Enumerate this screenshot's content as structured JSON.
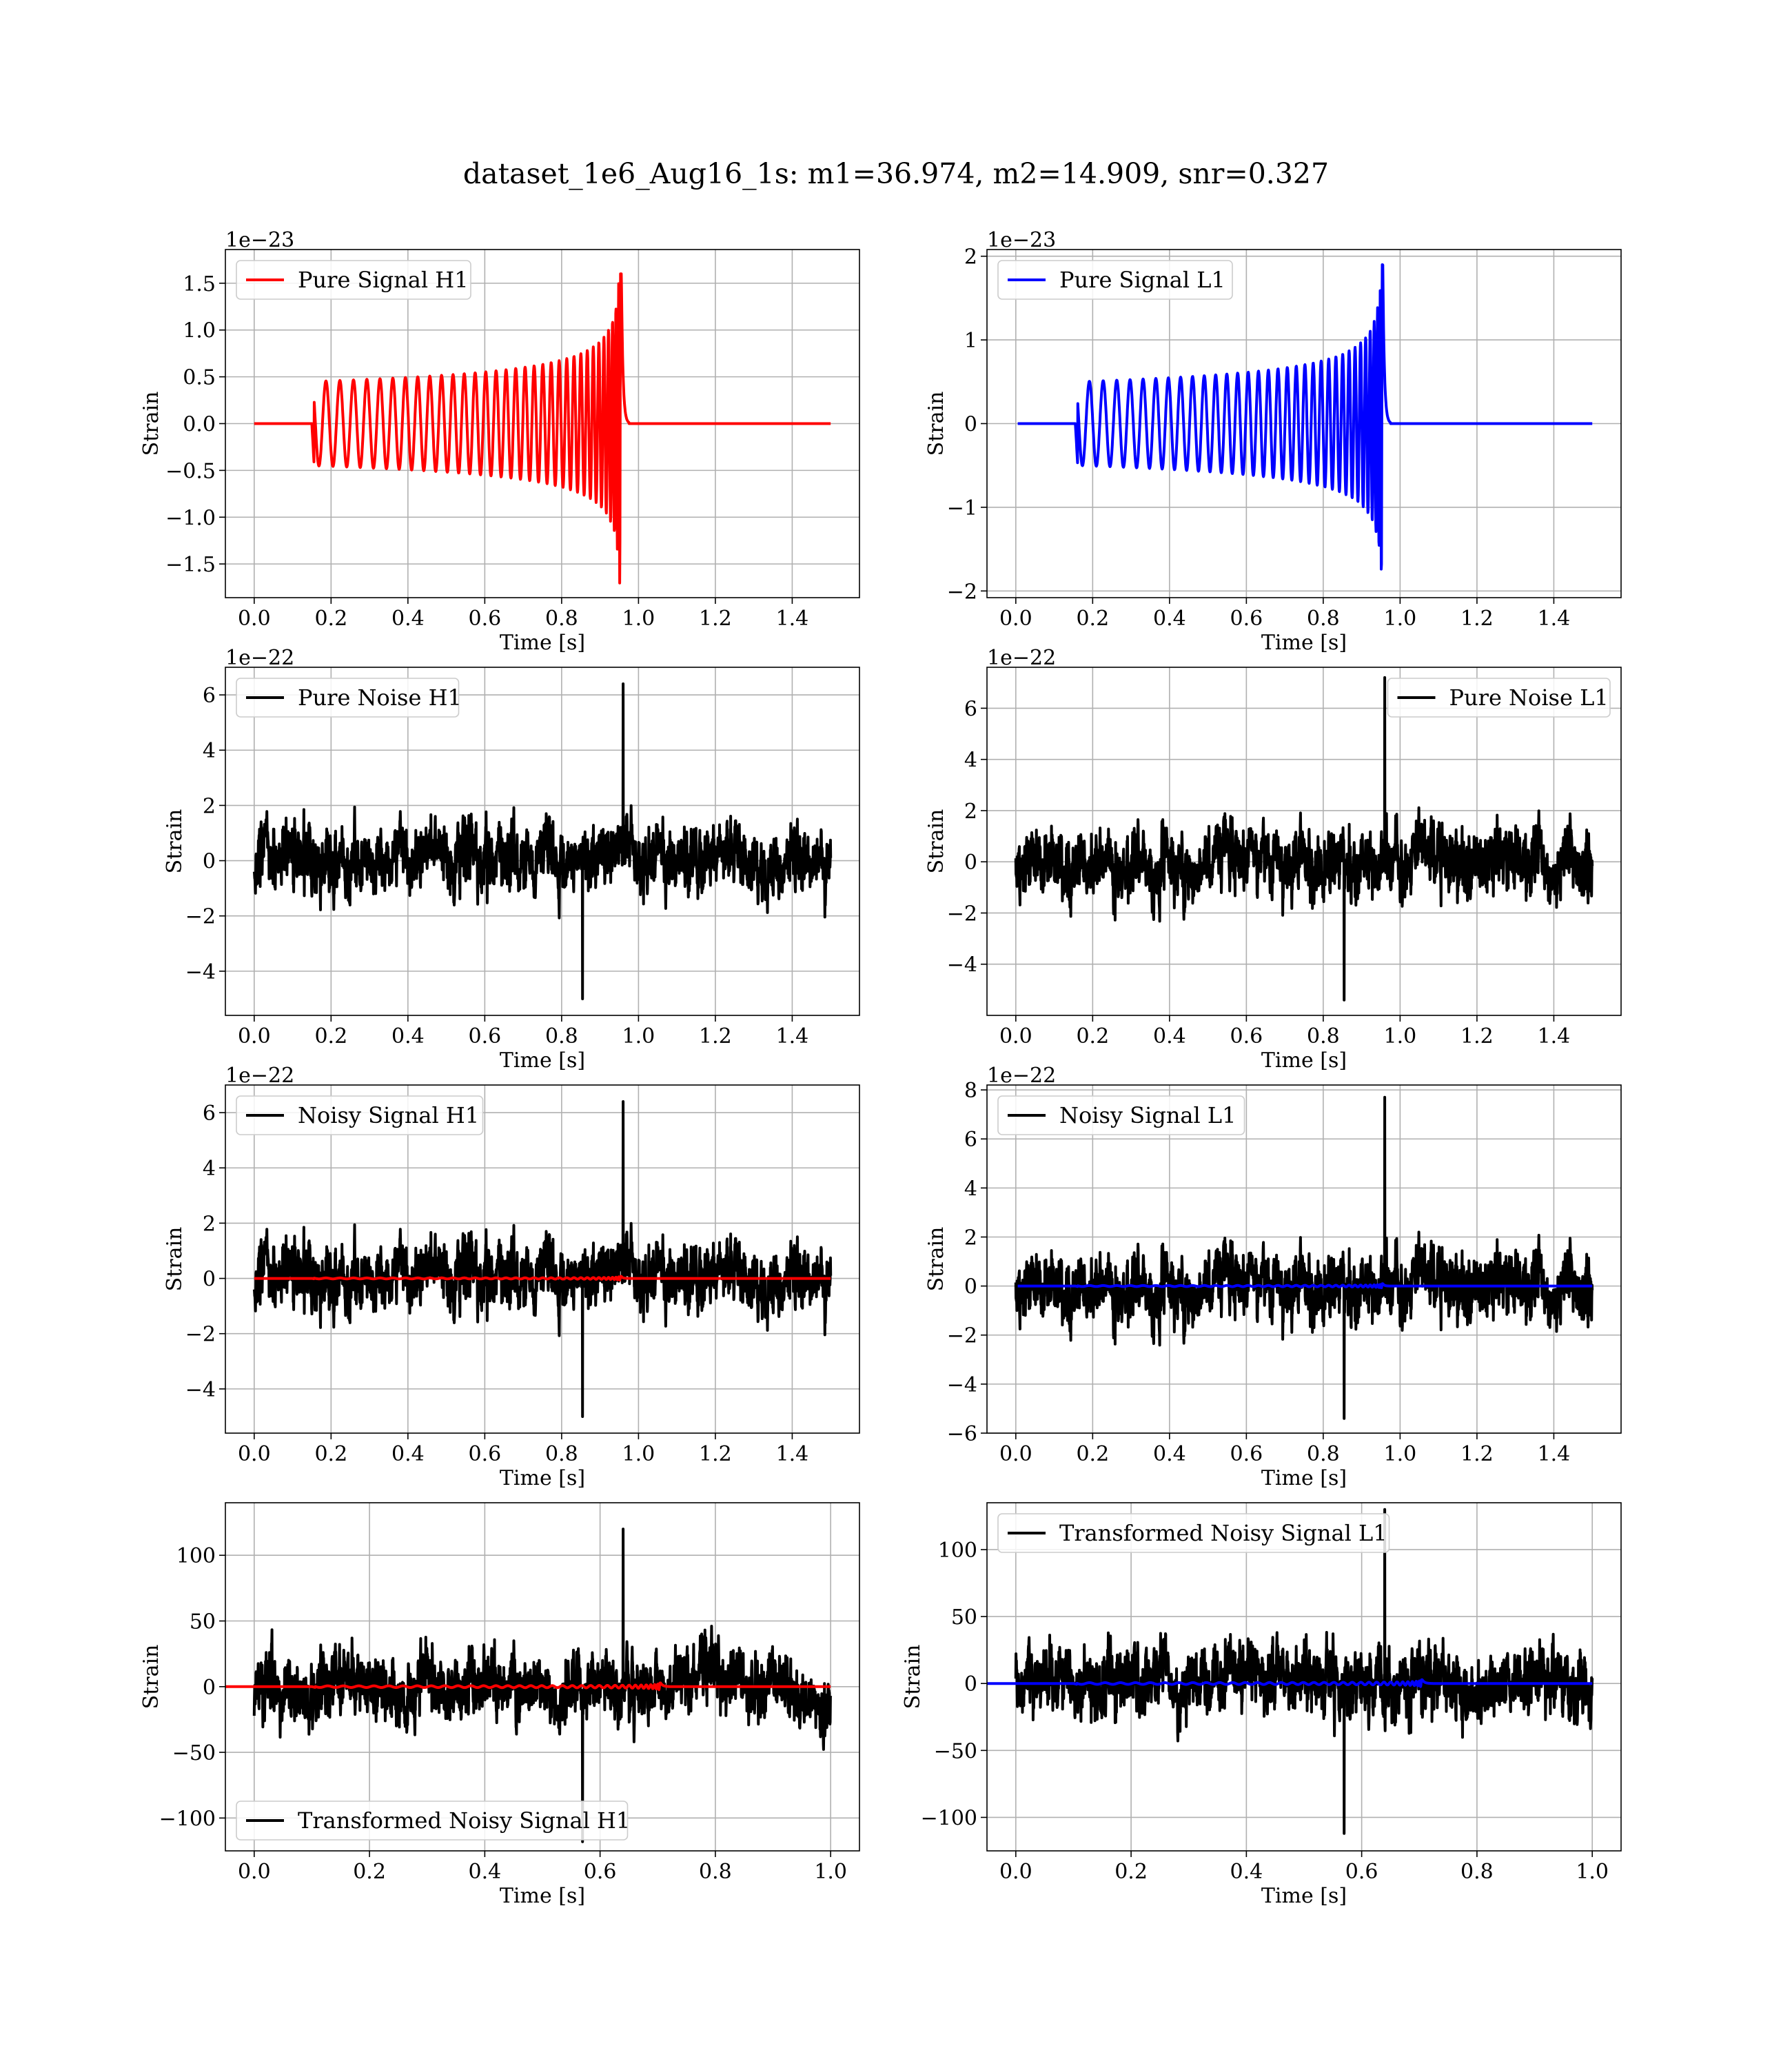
{
  "figure": {
    "title": "dataset_1e6_Aug16_1s: m1=36.974, m2=14.909, snr=0.327"
  },
  "chart_data": [
    {
      "type": "line",
      "title": "",
      "xlabel": "Time [s]",
      "ylabel": "Strain",
      "offset_label": "1e−23",
      "xlim": [
        -0.075,
        1.575
      ],
      "ylim": [
        -1.86,
        1.86
      ],
      "xticks": [
        0.0,
        0.2,
        0.4,
        0.6,
        0.8,
        1.0,
        1.2,
        1.4
      ],
      "xtick_labels": [
        "0.0",
        "0.2",
        "0.4",
        "0.6",
        "0.8",
        "1.0",
        "1.2",
        "1.4"
      ],
      "yticks": [
        1.5,
        1.0,
        0.5,
        0.0,
        -0.5,
        -1.0,
        -1.5
      ],
      "ytick_labels": [
        "1.5",
        "1.0",
        "0.5",
        "0.0",
        "−0.5",
        "−1.0",
        "−1.5"
      ],
      "grid": true,
      "legend_position": "upper left",
      "series": [
        {
          "name": "Pure Signal H1",
          "color": "#ff0000",
          "kind": "chirp",
          "t_start": 0.15,
          "t_merge": 0.955,
          "t_end": 1.5,
          "amp_start": 0.45,
          "amp_peak": 1.6,
          "amp_min_peak": -1.8,
          "cycles": 35
        }
      ]
    },
    {
      "type": "line",
      "title": "",
      "xlabel": "Time [s]",
      "ylabel": "Strain",
      "offset_label": "1e−23",
      "xlim": [
        -0.075,
        1.575
      ],
      "ylim": [
        -2.08,
        2.08
      ],
      "xticks": [
        0.0,
        0.2,
        0.4,
        0.6,
        0.8,
        1.0,
        1.2,
        1.4
      ],
      "xtick_labels": [
        "0.0",
        "0.2",
        "0.4",
        "0.6",
        "0.8",
        "1.0",
        "1.2",
        "1.4"
      ],
      "yticks": [
        2,
        1,
        0,
        -1,
        -2
      ],
      "ytick_labels": [
        "2",
        "1",
        "0",
        "−1",
        "−2"
      ],
      "grid": true,
      "legend_position": "upper left",
      "series": [
        {
          "name": "Pure Signal L1",
          "color": "#0000ff",
          "kind": "chirp",
          "t_start": 0.155,
          "t_merge": 0.955,
          "t_end": 1.5,
          "amp_start": 0.5,
          "amp_peak": 1.9,
          "amp_min_peak": -1.9,
          "cycles": 35
        }
      ]
    },
    {
      "type": "line",
      "title": "",
      "xlabel": "Time [s]",
      "ylabel": "Strain",
      "offset_label": "1e−22",
      "xlim": [
        -0.075,
        1.575
      ],
      "ylim": [
        -5.6,
        7.0
      ],
      "xticks": [
        0.0,
        0.2,
        0.4,
        0.6,
        0.8,
        1.0,
        1.2,
        1.4
      ],
      "xtick_labels": [
        "0.0",
        "0.2",
        "0.4",
        "0.6",
        "0.8",
        "1.0",
        "1.2",
        "1.4"
      ],
      "yticks": [
        6,
        4,
        2,
        0,
        -2,
        -4
      ],
      "ytick_labels": [
        "6",
        "4",
        "2",
        "0",
        "−2",
        "−4"
      ],
      "grid": true,
      "legend_position": "upper left",
      "series": [
        {
          "name": "Pure Noise H1",
          "color": "#000000",
          "kind": "noise",
          "t_start": 0.0,
          "t_end": 1.5,
          "max": 6.4,
          "min": -5.0,
          "seed": 11
        }
      ]
    },
    {
      "type": "line",
      "title": "",
      "xlabel": "Time [s]",
      "ylabel": "Strain",
      "offset_label": "1e−22",
      "xlim": [
        -0.075,
        1.575
      ],
      "ylim": [
        -6.0,
        7.6
      ],
      "xticks": [
        0.0,
        0.2,
        0.4,
        0.6,
        0.8,
        1.0,
        1.2,
        1.4
      ],
      "xtick_labels": [
        "0.0",
        "0.2",
        "0.4",
        "0.6",
        "0.8",
        "1.0",
        "1.2",
        "1.4"
      ],
      "yticks": [
        6,
        4,
        2,
        0,
        -2,
        -4
      ],
      "ytick_labels": [
        "6",
        "4",
        "2",
        "0",
        "−2",
        "−4"
      ],
      "grid": true,
      "legend_position": "upper right",
      "series": [
        {
          "name": "Pure Noise L1",
          "color": "#000000",
          "kind": "noise",
          "t_start": 0.0,
          "t_end": 1.5,
          "max": 7.2,
          "min": -5.4,
          "seed": 23
        }
      ]
    },
    {
      "type": "line",
      "title": "",
      "xlabel": "Time [s]",
      "ylabel": "Strain",
      "offset_label": "1e−22",
      "xlim": [
        -0.075,
        1.575
      ],
      "ylim": [
        -5.6,
        7.0
      ],
      "xticks": [
        0.0,
        0.2,
        0.4,
        0.6,
        0.8,
        1.0,
        1.2,
        1.4
      ],
      "xtick_labels": [
        "0.0",
        "0.2",
        "0.4",
        "0.6",
        "0.8",
        "1.0",
        "1.2",
        "1.4"
      ],
      "yticks": [
        6,
        4,
        2,
        0,
        -2,
        -4
      ],
      "ytick_labels": [
        "6",
        "4",
        "2",
        "0",
        "−2",
        "−4"
      ],
      "grid": true,
      "legend_position": "upper left",
      "series": [
        {
          "name": "Noisy Signal H1",
          "color": "#000000",
          "kind": "noise",
          "t_start": 0.0,
          "t_end": 1.5,
          "max": 6.4,
          "min": -5.0,
          "seed": 11
        },
        {
          "name": "",
          "color": "#ff0000",
          "kind": "chirp",
          "t_start": 0.15,
          "t_merge": 0.955,
          "t_end": 1.5,
          "amp_start": 0.016,
          "amp_peak": 0.16,
          "amp_min_peak": -0.18,
          "cycles": 35
        }
      ]
    },
    {
      "type": "line",
      "title": "",
      "xlabel": "Time [s]",
      "ylabel": "Strain",
      "offset_label": "1e−22",
      "xlim": [
        -0.075,
        1.575
      ],
      "ylim": [
        -6.0,
        8.2
      ],
      "xticks": [
        0.0,
        0.2,
        0.4,
        0.6,
        0.8,
        1.0,
        1.2,
        1.4
      ],
      "xtick_labels": [
        "0.0",
        "0.2",
        "0.4",
        "0.6",
        "0.8",
        "1.0",
        "1.2",
        "1.4"
      ],
      "yticks": [
        8,
        6,
        4,
        2,
        0,
        -2,
        -4,
        -6
      ],
      "ytick_labels": [
        "8",
        "6",
        "4",
        "2",
        "0",
        "−2",
        "−4",
        "−6"
      ],
      "grid": true,
      "legend_position": "upper left",
      "series": [
        {
          "name": "Noisy Signal L1",
          "color": "#000000",
          "kind": "noise",
          "t_start": 0.0,
          "t_end": 1.5,
          "max": 7.7,
          "min": -5.4,
          "seed": 23
        },
        {
          "name": "",
          "color": "#0000ff",
          "kind": "chirp",
          "t_start": 0.155,
          "t_merge": 0.955,
          "t_end": 1.5,
          "amp_start": 0.02,
          "amp_peak": 0.19,
          "amp_min_peak": -0.19,
          "cycles": 35
        }
      ]
    },
    {
      "type": "line",
      "title": "",
      "xlabel": "Time [s]",
      "ylabel": "Strain",
      "offset_label": "",
      "xlim": [
        -0.05,
        1.05
      ],
      "ylim": [
        -125,
        140
      ],
      "xticks": [
        0.0,
        0.2,
        0.4,
        0.6,
        0.8,
        1.0
      ],
      "xtick_labels": [
        "0.0",
        "0.2",
        "0.4",
        "0.6",
        "0.8",
        "1.0"
      ],
      "yticks": [
        100,
        50,
        0,
        -50,
        -100
      ],
      "ytick_labels": [
        "100",
        "50",
        "0",
        "−50",
        "−100"
      ],
      "grid": true,
      "legend_position": "lower left",
      "series": [
        {
          "name": "Transformed Noisy Signal H1",
          "color": "#000000",
          "kind": "noise",
          "t_start": 0.0,
          "t_end": 1.0,
          "max": 120,
          "min": -118,
          "seed": 37
        },
        {
          "name": "",
          "color": "#ff0000",
          "kind": "chirp",
          "t_start": 0.1,
          "t_merge": 0.705,
          "t_end": 1.0,
          "amp_start": 0.6,
          "amp_peak": 4.0,
          "amp_min_peak": -4.0,
          "cycles": 35
        }
      ]
    },
    {
      "type": "line",
      "title": "",
      "xlabel": "Time [s]",
      "ylabel": "Strain",
      "offset_label": "",
      "xlim": [
        -0.05,
        1.05
      ],
      "ylim": [
        -125,
        135
      ],
      "xticks": [
        0.0,
        0.2,
        0.4,
        0.6,
        0.8,
        1.0
      ],
      "xtick_labels": [
        "0.0",
        "0.2",
        "0.4",
        "0.6",
        "0.8",
        "1.0"
      ],
      "yticks": [
        100,
        50,
        0,
        -50,
        -100
      ],
      "ytick_labels": [
        "100",
        "50",
        "0",
        "−50",
        "−100"
      ],
      "grid": true,
      "legend_position": "upper left",
      "series": [
        {
          "name": "Transformed Noisy Signal L1",
          "color": "#000000",
          "kind": "noise",
          "t_start": 0.0,
          "t_end": 1.0,
          "max": 130,
          "min": -112,
          "seed": 41
        },
        {
          "name": "",
          "color": "#0000ff",
          "kind": "chirp",
          "t_start": 0.1,
          "t_merge": 0.705,
          "t_end": 1.0,
          "amp_start": 0.6,
          "amp_peak": 4.0,
          "amp_min_peak": -4.0,
          "cycles": 35
        }
      ]
    }
  ]
}
